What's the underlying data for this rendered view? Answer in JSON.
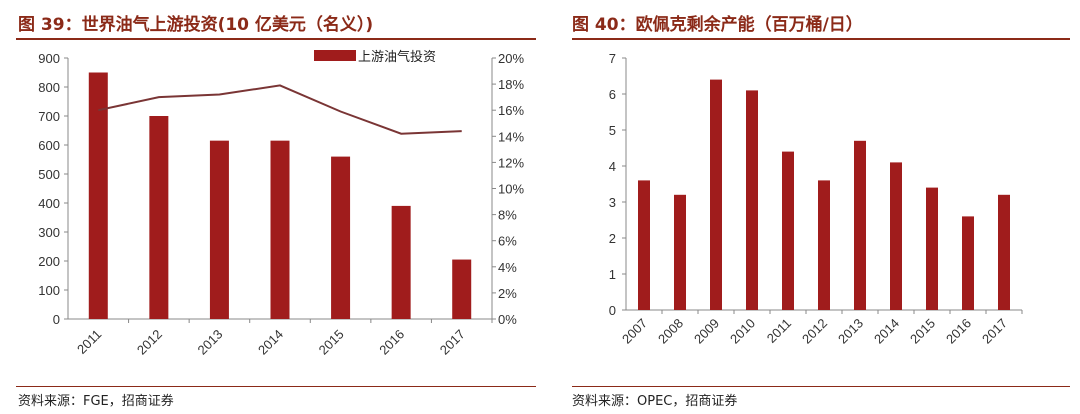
{
  "left": {
    "title": "图 39：世界油气上游投资(10 亿美元（名义）)",
    "source": "资料来源：FGE，招商证券"
  },
  "right": {
    "title": "图 40：欧佩克剩余产能（百万桶/日）",
    "source": "资料来源：OPEC，招商证券"
  },
  "colors": {
    "bar": "#a01c1c",
    "line": "#7a3535",
    "accent": "#8b2a18"
  },
  "chart_data": [
    {
      "type": "bar",
      "title": "图 39：世界油气上游投资(10 亿美元（名义）)",
      "categories": [
        "2011",
        "2012",
        "2013",
        "2014",
        "2015",
        "2016",
        "2017"
      ],
      "series": [
        {
          "name": "上游油气投资",
          "type": "bar",
          "axis": "left",
          "values": [
            850,
            700,
            615,
            615,
            560,
            390,
            205
          ]
        },
        {
          "name": "",
          "type": "line",
          "axis": "right",
          "values": [
            16.0,
            17.0,
            17.2,
            17.9,
            15.9,
            14.2,
            14.4
          ]
        }
      ],
      "ylim": [
        0,
        900
      ],
      "y_ticks": [
        "0",
        "100",
        "200",
        "300",
        "400",
        "500",
        "600",
        "700",
        "800",
        "900"
      ],
      "y2lim": [
        0,
        20
      ],
      "y2_ticks": [
        "0%",
        "2%",
        "4%",
        "6%",
        "8%",
        "10%",
        "12%",
        "14%",
        "16%",
        "18%",
        "20%"
      ],
      "legend": {
        "position": "top-right",
        "entries": [
          "上游油气投资"
        ]
      },
      "grid": false
    },
    {
      "type": "bar",
      "title": "图 40：欧佩克剩余产能（百万桶/日）",
      "categories": [
        "2007",
        "2008",
        "2009",
        "2010",
        "2011",
        "2012",
        "2013",
        "2014",
        "2015",
        "2016",
        "2017"
      ],
      "series": [
        {
          "name": "",
          "values": [
            3.6,
            3.2,
            6.4,
            6.1,
            4.4,
            3.6,
            4.7,
            4.1,
            3.4,
            2.6,
            3.2
          ]
        }
      ],
      "ylim": [
        0,
        7
      ],
      "y_ticks": [
        "0",
        "1",
        "2",
        "3",
        "4",
        "5",
        "6",
        "7"
      ],
      "grid": false
    }
  ]
}
